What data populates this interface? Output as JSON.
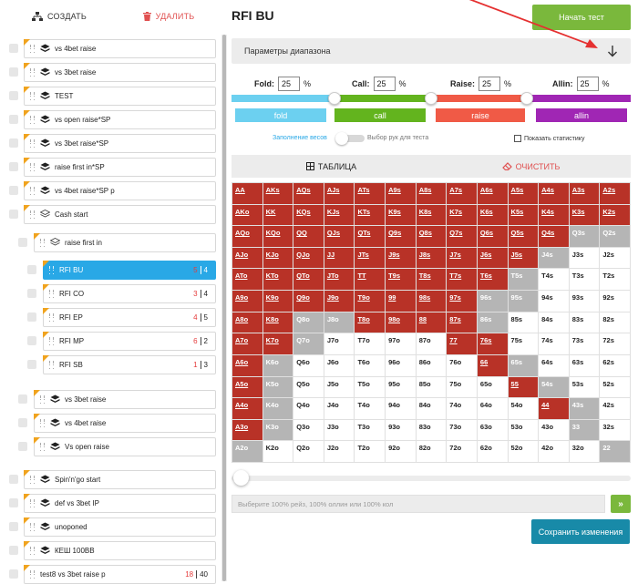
{
  "sidebar": {
    "create_label": "СОЗДАТЬ",
    "delete_label": "УДАЛИТЬ",
    "tree": [
      {
        "label": "vs 4bet raise",
        "level": 0,
        "type": "folder-solid"
      },
      {
        "label": "vs 3bet raise",
        "level": 0,
        "type": "folder-solid"
      },
      {
        "label": "TEST",
        "level": 0,
        "type": "folder-solid"
      },
      {
        "label": "vs open raise*SP",
        "level": 0,
        "type": "folder-solid"
      },
      {
        "label": "vs 3bet raise*SP",
        "level": 0,
        "type": "folder-solid"
      },
      {
        "label": "raise first in*SP",
        "level": 0,
        "type": "folder-solid"
      },
      {
        "label": "vs 4bet raise*SP p",
        "level": 0,
        "type": "folder-solid"
      },
      {
        "label": "Cash start",
        "level": 0,
        "type": "folder-outline"
      },
      {
        "label": "raise first in",
        "level": 1,
        "type": "folder-outline"
      },
      {
        "label": "RFI BU",
        "level": 2,
        "type": "range",
        "count_red": "5",
        "count": "4",
        "active": true
      },
      {
        "label": "RFI CO",
        "level": 2,
        "type": "range",
        "count_red": "3",
        "count": "4"
      },
      {
        "label": "RFI EP",
        "level": 2,
        "type": "range",
        "count_red": "4",
        "count": "5"
      },
      {
        "label": "RFI MP",
        "level": 2,
        "type": "range",
        "count_red": "6",
        "count": "2"
      },
      {
        "label": "RFI SB",
        "level": 2,
        "type": "range",
        "count_red": "1",
        "count": "3"
      },
      {
        "label": "vs 3bet raise",
        "level": 1,
        "type": "folder-solid"
      },
      {
        "label": "vs 4bet raise",
        "level": 1,
        "type": "folder-solid"
      },
      {
        "label": "Vs open raise",
        "level": 1,
        "type": "folder-solid"
      },
      {
        "label": "Spin'n'go start",
        "level": 0,
        "type": "folder-solid"
      },
      {
        "label": "def vs 3bet IP",
        "level": 0,
        "type": "folder-solid"
      },
      {
        "label": "unoponed",
        "level": 0,
        "type": "folder-solid"
      },
      {
        "label": "КЕШ 100BB",
        "level": 0,
        "type": "folder-solid"
      },
      {
        "label": "test8 vs 3bet raise p",
        "level": 0,
        "type": "range",
        "count_red": "18",
        "count": "40"
      }
    ]
  },
  "main": {
    "title": "RFI BU",
    "start_test_label": "Начать тест",
    "params_label": "Параметры диапазона",
    "actions": [
      {
        "label": "Fold:",
        "value": "25",
        "pct": "%",
        "button": "fold",
        "color": "#6cd0f0"
      },
      {
        "label": "Call:",
        "value": "25",
        "pct": "%",
        "button": "call",
        "color": "#63b41e"
      },
      {
        "label": "Raise:",
        "value": "25",
        "pct": "%",
        "button": "raise",
        "color": "#f05a46"
      },
      {
        "label": "Allin:",
        "value": "25",
        "pct": "%",
        "button": "allin",
        "color": "#a026b4"
      }
    ],
    "weights_label": "Заполнение весов",
    "hands_label": "Выбор рук для теста",
    "stats_label": "Показать статистику",
    "table_tab": "ТАБЛИЦА",
    "clear_tab": "ОЧИСТИТЬ",
    "input_placeholder": "Выберите 100% рейз, 100% оллин или 100% кол",
    "go_label": "»",
    "save_label": "Сохранить изменения"
  },
  "grid": {
    "rows": [
      [
        "AA",
        "AKs",
        "AQs",
        "AJs",
        "ATs",
        "A9s",
        "A8s",
        "A7s",
        "A6s",
        "A5s",
        "A4s",
        "A3s",
        "A2s"
      ],
      [
        "AKo",
        "KK",
        "KQs",
        "KJs",
        "KTs",
        "K9s",
        "K8s",
        "K7s",
        "K6s",
        "K5s",
        "K4s",
        "K3s",
        "K2s"
      ],
      [
        "AQo",
        "KQo",
        "QQ",
        "QJs",
        "QTs",
        "Q9s",
        "Q8s",
        "Q7s",
        "Q6s",
        "Q5s",
        "Q4s",
        "Q3s",
        "Q2s"
      ],
      [
        "AJo",
        "KJo",
        "QJo",
        "JJ",
        "JTs",
        "J9s",
        "J8s",
        "J7s",
        "J6s",
        "J5s",
        "J4s",
        "J3s",
        "J2s"
      ],
      [
        "ATo",
        "KTo",
        "QTo",
        "JTo",
        "TT",
        "T9s",
        "T8s",
        "T7s",
        "T6s",
        "T5s",
        "T4s",
        "T3s",
        "T2s"
      ],
      [
        "A9o",
        "K9o",
        "Q9o",
        "J9o",
        "T9o",
        "99",
        "98s",
        "97s",
        "96s",
        "95s",
        "94s",
        "93s",
        "92s"
      ],
      [
        "A8o",
        "K8o",
        "Q8o",
        "J8o",
        "T8o",
        "98o",
        "88",
        "87s",
        "86s",
        "85s",
        "84s",
        "83s",
        "82s"
      ],
      [
        "A7o",
        "K7o",
        "Q7o",
        "J7o",
        "T7o",
        "97o",
        "87o",
        "77",
        "76s",
        "75s",
        "74s",
        "73s",
        "72s"
      ],
      [
        "A6o",
        "K6o",
        "Q6o",
        "J6o",
        "T6o",
        "96o",
        "86o",
        "76o",
        "66",
        "65s",
        "64s",
        "63s",
        "62s"
      ],
      [
        "A5o",
        "K5o",
        "Q5o",
        "J5o",
        "T5o",
        "95o",
        "85o",
        "75o",
        "65o",
        "55",
        "54s",
        "53s",
        "52s"
      ],
      [
        "A4o",
        "K4o",
        "Q4o",
        "J4o",
        "T4o",
        "94o",
        "84o",
        "74o",
        "64o",
        "54o",
        "44",
        "43s",
        "42s"
      ],
      [
        "A3o",
        "K3o",
        "Q3o",
        "J3o",
        "T3o",
        "93o",
        "83o",
        "73o",
        "63o",
        "53o",
        "43o",
        "33",
        "32s"
      ],
      [
        "A2o",
        "K2o",
        "Q2o",
        "J2o",
        "T2o",
        "92o",
        "82o",
        "72o",
        "62o",
        "52o",
        "42o",
        "32o",
        "22"
      ]
    ],
    "states": [
      "rrrrrrrrrrrrr",
      "rrrrrrrrrrrrr",
      "rrrrrrrrrrrgg",
      "rrrrrrrrrrg..",
      "rrrrrrrrrg...",
      "rrrrrrrrgg...",
      "rrggrrrrg....",
      "rrg....rr....",
      "rg......rg...",
      "rg.......rg..",
      "rg........rg.",
      "rg.........g.",
      "g...........g"
    ]
  }
}
